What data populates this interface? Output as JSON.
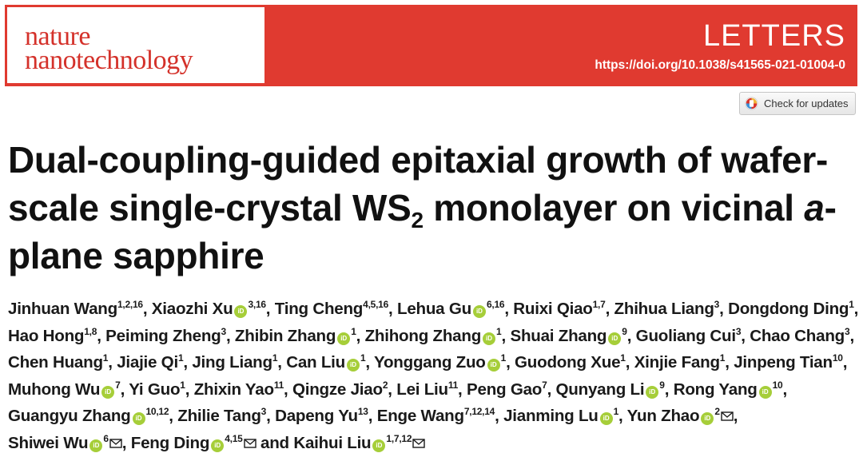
{
  "journal": {
    "logo_line1": "nature",
    "logo_line2": "nanotechnology",
    "article_type": "LETTERS",
    "doi": "https://doi.org/10.1038/s41565-021-01004-0",
    "brand_color": "#e03a30"
  },
  "check_updates": {
    "label": "Check for updates"
  },
  "title": {
    "part1": "Dual-coupling-guided epitaxial growth of wafer-scale single-crystal WS",
    "subscript": "2",
    "part2": " monolayer on vicinal ",
    "italic": "a",
    "part3": "-plane sapphire"
  },
  "authors": [
    {
      "name": "Jinhuan Wang",
      "affil": "1,2,16",
      "orcid": false,
      "corresponding": false
    },
    {
      "name": "Xiaozhi Xu",
      "affil": "3,16",
      "orcid": true,
      "corresponding": false
    },
    {
      "name": "Ting Cheng",
      "affil": "4,5,16",
      "orcid": false,
      "corresponding": false
    },
    {
      "name": "Lehua Gu",
      "affil": "6,16",
      "orcid": true,
      "corresponding": false
    },
    {
      "name": "Ruixi Qiao",
      "affil": "1,7",
      "orcid": false,
      "corresponding": false
    },
    {
      "name": "Zhihua Liang",
      "affil": "3",
      "orcid": false,
      "corresponding": false
    },
    {
      "name": "Dongdong Ding",
      "affil": "1",
      "orcid": false,
      "corresponding": false
    },
    {
      "name": "Hao Hong",
      "affil": "1,8",
      "orcid": false,
      "corresponding": false
    },
    {
      "name": "Peiming Zheng",
      "affil": "3",
      "orcid": false,
      "corresponding": false
    },
    {
      "name": "Zhibin Zhang",
      "affil": "1",
      "orcid": true,
      "corresponding": false
    },
    {
      "name": "Zhihong Zhang",
      "affil": "1",
      "orcid": true,
      "corresponding": false
    },
    {
      "name": "Shuai Zhang",
      "affil": "9",
      "orcid": true,
      "corresponding": false
    },
    {
      "name": "Guoliang Cui",
      "affil": "3",
      "orcid": false,
      "corresponding": false
    },
    {
      "name": "Chao Chang",
      "affil": "3",
      "orcid": false,
      "corresponding": false
    },
    {
      "name": "Chen Huang",
      "affil": "1",
      "orcid": false,
      "corresponding": false
    },
    {
      "name": "Jiajie Qi",
      "affil": "1",
      "orcid": false,
      "corresponding": false
    },
    {
      "name": "Jing Liang",
      "affil": "1",
      "orcid": false,
      "corresponding": false
    },
    {
      "name": "Can Liu",
      "affil": "1",
      "orcid": true,
      "corresponding": false
    },
    {
      "name": "Yonggang Zuo",
      "affil": "1",
      "orcid": true,
      "corresponding": false
    },
    {
      "name": "Guodong Xue",
      "affil": "1",
      "orcid": false,
      "corresponding": false
    },
    {
      "name": "Xinjie Fang",
      "affil": "1",
      "orcid": false,
      "corresponding": false
    },
    {
      "name": "Jinpeng Tian",
      "affil": "10",
      "orcid": false,
      "corresponding": false
    },
    {
      "name": "Muhong Wu",
      "affil": "7",
      "orcid": true,
      "corresponding": false
    },
    {
      "name": "Yi Guo",
      "affil": "1",
      "orcid": false,
      "corresponding": false
    },
    {
      "name": "Zhixin Yao",
      "affil": "11",
      "orcid": false,
      "corresponding": false
    },
    {
      "name": "Qingze Jiao",
      "affil": "2",
      "orcid": false,
      "corresponding": false
    },
    {
      "name": "Lei Liu",
      "affil": "11",
      "orcid": false,
      "corresponding": false
    },
    {
      "name": "Peng Gao",
      "affil": "7",
      "orcid": false,
      "corresponding": false
    },
    {
      "name": "Qunyang Li",
      "affil": "9",
      "orcid": true,
      "corresponding": false
    },
    {
      "name": "Rong Yang",
      "affil": "10",
      "orcid": true,
      "corresponding": false
    },
    {
      "name": "Guangyu Zhang",
      "affil": "10,12",
      "orcid": true,
      "corresponding": false
    },
    {
      "name": "Zhilie Tang",
      "affil": "3",
      "orcid": false,
      "corresponding": false
    },
    {
      "name": "Dapeng Yu",
      "affil": "13",
      "orcid": false,
      "corresponding": false
    },
    {
      "name": "Enge Wang",
      "affil": "7,12,14",
      "orcid": false,
      "corresponding": false
    },
    {
      "name": "Jianming Lu",
      "affil": "1",
      "orcid": true,
      "corresponding": false
    },
    {
      "name": "Yun Zhao",
      "affil": "2",
      "orcid": true,
      "corresponding": true
    },
    {
      "name": "Shiwei Wu",
      "affil": "6",
      "orcid": true,
      "corresponding": true
    },
    {
      "name": "Feng Ding",
      "affil": "4,15",
      "orcid": true,
      "corresponding": true
    },
    {
      "name": "Kaihui Liu",
      "affil": "1,7,12",
      "orcid": true,
      "corresponding": true
    }
  ],
  "authors_conjunction": "and",
  "orcid_icon": "orcid-icon",
  "mail_icon": "envelope-icon",
  "orcid_color": "#a6ce39"
}
